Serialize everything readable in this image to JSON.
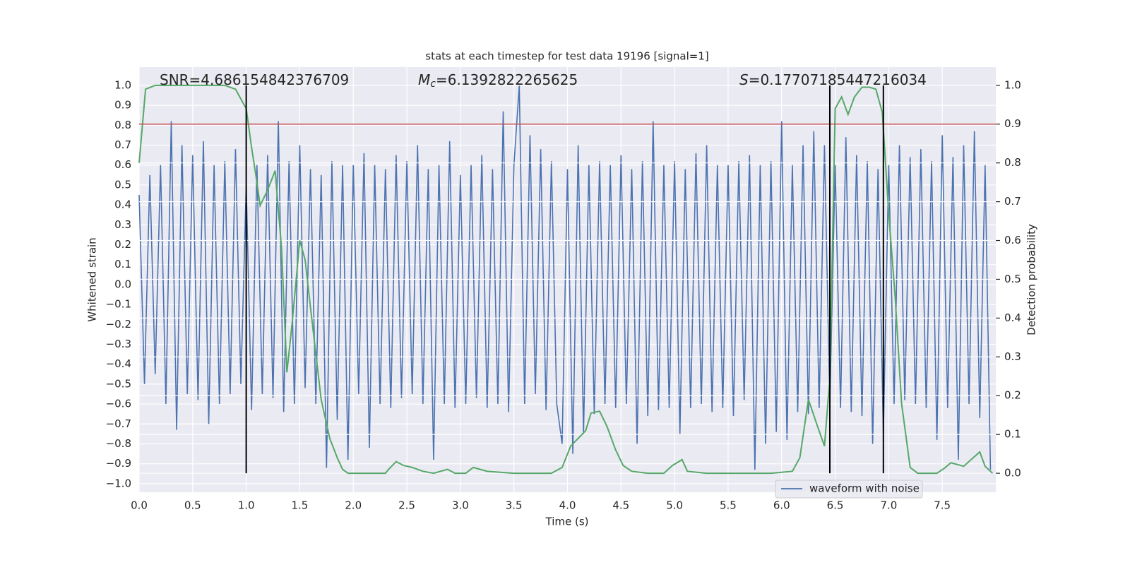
{
  "chart_data": {
    "type": "line",
    "title": "stats at each timestep for test data 19196 [signal=1]",
    "x_label": "Time (s)",
    "y_label": "Whitened strain",
    "y2_label": "Detection probability",
    "xlim": [
      0,
      8
    ],
    "ylim": [
      -1.043,
      1.092
    ],
    "y2lim": [
      -0.049,
      1.047
    ],
    "grid": true,
    "legend": "lower right",
    "xticks": [
      {
        "value": 0,
        "label": "0.0"
      },
      {
        "value": 0.5,
        "label": "0.5"
      },
      {
        "value": 1,
        "label": "1.0"
      },
      {
        "value": 1.5,
        "label": "1.5"
      },
      {
        "value": 2,
        "label": "2.0"
      },
      {
        "value": 2.5,
        "label": "2.5"
      },
      {
        "value": 3,
        "label": "3.0"
      },
      {
        "value": 3.5,
        "label": "3.5"
      },
      {
        "value": 4,
        "label": "4.0"
      },
      {
        "value": 4.5,
        "label": "4.5"
      },
      {
        "value": 5,
        "label": "5.0"
      },
      {
        "value": 5.5,
        "label": "5.5"
      },
      {
        "value": 6,
        "label": "6.0"
      },
      {
        "value": 6.5,
        "label": "6.5"
      },
      {
        "value": 7,
        "label": "7.0"
      },
      {
        "value": 7.5,
        "label": "7.5"
      }
    ],
    "yticks": [
      {
        "value": -1,
        "label": "−1.0"
      },
      {
        "value": -0.9,
        "label": "−0.9"
      },
      {
        "value": -0.8,
        "label": "−0.8"
      },
      {
        "value": -0.7,
        "label": "−0.7"
      },
      {
        "value": -0.6,
        "label": "−0.6"
      },
      {
        "value": -0.5,
        "label": "−0.5"
      },
      {
        "value": -0.4,
        "label": "−0.4"
      },
      {
        "value": -0.3,
        "label": "−0.3"
      },
      {
        "value": -0.2,
        "label": "−0.2"
      },
      {
        "value": -0.1,
        "label": "−0.1"
      },
      {
        "value": 0,
        "label": "0.0"
      },
      {
        "value": 0.1,
        "label": "0.1"
      },
      {
        "value": 0.2,
        "label": "0.2"
      },
      {
        "value": 0.3,
        "label": "0.3"
      },
      {
        "value": 0.4,
        "label": "0.4"
      },
      {
        "value": 0.5,
        "label": "0.5"
      },
      {
        "value": 0.6,
        "label": "0.6"
      },
      {
        "value": 0.7,
        "label": "0.7"
      },
      {
        "value": 0.8,
        "label": "0.8"
      },
      {
        "value": 0.9,
        "label": "0.9"
      },
      {
        "value": 1,
        "label": "1.0"
      }
    ],
    "y2ticks": [
      {
        "value": 0,
        "label": "0.0"
      },
      {
        "value": 0.1,
        "label": "0.1"
      },
      {
        "value": 0.2,
        "label": "0.2"
      },
      {
        "value": 0.3,
        "label": "0.3"
      },
      {
        "value": 0.4,
        "label": "0.4"
      },
      {
        "value": 0.5,
        "label": "0.5"
      },
      {
        "value": 0.6,
        "label": "0.6"
      },
      {
        "value": 0.7,
        "label": "0.7"
      },
      {
        "value": 0.8,
        "label": "0.8"
      },
      {
        "value": 0.9,
        "label": "0.9"
      },
      {
        "value": 1,
        "label": "1.0"
      }
    ],
    "series": [
      {
        "name": "waveform with noise",
        "color": "#4c72b0",
        "x": [
          0,
          0.05,
          0.1,
          0.15,
          0.2,
          0.25,
          0.3,
          0.35,
          0.4,
          0.45,
          0.5,
          0.55,
          0.6,
          0.65,
          0.7,
          0.75,
          0.8,
          0.85,
          0.9,
          0.95,
          1,
          1.05,
          1.1,
          1.15,
          1.2,
          1.25,
          1.3,
          1.35,
          1.4,
          1.45,
          1.5,
          1.55,
          1.6,
          1.65,
          1.7,
          1.75,
          1.8,
          1.85,
          1.9,
          1.95,
          2,
          2.05,
          2.1,
          2.15,
          2.2,
          2.25,
          2.3,
          2.35,
          2.4,
          2.45,
          2.5,
          2.55,
          2.6,
          2.65,
          2.7,
          2.75,
          2.8,
          2.85,
          2.9,
          2.95,
          3,
          3.05,
          3.1,
          3.15,
          3.2,
          3.25,
          3.3,
          3.35,
          3.4,
          3.45,
          3.5,
          3.55,
          3.6,
          3.65,
          3.7,
          3.75,
          3.8,
          3.85,
          3.9,
          3.95,
          4,
          4.05,
          4.1,
          4.15,
          4.2,
          4.25,
          4.3,
          4.35,
          4.4,
          4.45,
          4.5,
          4.55,
          4.6,
          4.65,
          4.7,
          4.75,
          4.8,
          4.85,
          4.9,
          4.95,
          5,
          5.05,
          5.1,
          5.15,
          5.2,
          5.25,
          5.3,
          5.35,
          5.4,
          5.45,
          5.5,
          5.55,
          5.6,
          5.65,
          5.7,
          5.75,
          5.8,
          5.85,
          5.9,
          5.95,
          6,
          6.05,
          6.1,
          6.15,
          6.2,
          6.25,
          6.3,
          6.35,
          6.4,
          6.45,
          6.5,
          6.55,
          6.6,
          6.65,
          6.7,
          6.75,
          6.8,
          6.85,
          6.9,
          6.95,
          7,
          7.05,
          7.1,
          7.15,
          7.2,
          7.25,
          7.3,
          7.35,
          7.4,
          7.45,
          7.5,
          7.55,
          7.6,
          7.65,
          7.7,
          7.75,
          7.8,
          7.85,
          7.9,
          7.95
        ],
        "values": [
          0.45,
          -0.5,
          0.55,
          -0.45,
          0.6,
          -0.6,
          0.82,
          -0.73,
          0.7,
          -0.55,
          0.65,
          -0.58,
          0.72,
          -0.7,
          0.6,
          -0.6,
          0.62,
          -0.55,
          0.68,
          -0.5,
          0.5,
          -0.63,
          0.6,
          -0.55,
          0.65,
          -0.57,
          0.82,
          -0.64,
          0.62,
          -0.6,
          0.7,
          -0.52,
          0.58,
          -0.6,
          0.55,
          -0.92,
          0.62,
          -0.68,
          0.6,
          -0.88,
          0.6,
          -0.55,
          0.66,
          -0.82,
          0.6,
          -0.6,
          0.58,
          -0.62,
          0.65,
          -0.57,
          0.62,
          -0.55,
          0.7,
          -0.6,
          0.58,
          -0.88,
          0.6,
          -0.6,
          0.72,
          -0.62,
          0.55,
          -0.6,
          0.6,
          -0.57,
          0.65,
          -0.62,
          0.58,
          -0.6,
          0.87,
          -0.64,
          0.6,
          1.0,
          -0.6,
          0.75,
          -0.55,
          0.68,
          -0.63,
          0.62,
          -0.6,
          -0.8,
          0.58,
          -0.85,
          0.7,
          -0.75,
          0.6,
          -0.65,
          0.62,
          -0.6,
          0.6,
          -0.62,
          0.65,
          -0.6,
          0.58,
          -0.8,
          0.62,
          -0.66,
          0.82,
          -0.63,
          0.6,
          -0.62,
          0.62,
          -0.75,
          0.58,
          -0.62,
          0.66,
          -0.6,
          0.7,
          -0.64,
          0.6,
          -0.62,
          0.6,
          -0.66,
          0.62,
          -0.58,
          0.65,
          -0.93,
          0.6,
          -0.8,
          0.62,
          -0.74,
          0.82,
          -0.78,
          0.6,
          -0.64,
          0.7,
          -0.65,
          0.77,
          -0.62,
          0.7,
          -0.6,
          0.6,
          -0.62,
          0.74,
          -0.64,
          0.65,
          -0.66,
          0.62,
          -0.8,
          0.58,
          -0.75,
          0.6,
          -0.6,
          0.7,
          -0.58,
          0.64,
          -0.6,
          0.68,
          -0.62,
          0.62,
          -0.78,
          0.75,
          -0.62,
          0.64,
          -0.88,
          0.7,
          -0.6,
          0.77,
          -0.67,
          0.6,
          -0.93
        ]
      }
    ],
    "probability": {
      "axis": "y2",
      "color": "#55a868",
      "x": [
        0,
        0.06,
        0.15,
        0.8,
        0.9,
        1,
        1.05,
        1.1,
        1.13,
        1.2,
        1.27,
        1.33,
        1.38,
        1.43,
        1.5,
        1.55,
        1.62,
        1.7,
        1.78,
        1.85,
        1.9,
        1.95,
        2.1,
        2.3,
        2.33,
        2.4,
        2.47,
        2.55,
        2.65,
        2.75,
        2.88,
        2.95,
        3.05,
        3.12,
        3.25,
        3.5,
        3.85,
        3.95,
        4.03,
        4.1,
        4.17,
        4.22,
        4.3,
        4.37,
        4.45,
        4.52,
        4.6,
        4.75,
        4.9,
        4.98,
        5.07,
        5.12,
        5.3,
        5.9,
        6.1,
        6.17,
        6.25,
        6.33,
        6.4,
        6.45,
        6.5,
        6.56,
        6.62,
        6.68,
        6.75,
        6.82,
        6.88,
        6.94,
        7,
        7.06,
        7.12,
        7.2,
        7.27,
        7.45,
        7.52,
        7.58,
        7.7,
        7.85,
        7.9,
        7.97
      ],
      "values": [
        0.8,
        0.99,
        1,
        1,
        0.99,
        0.94,
        0.84,
        0.75,
        0.69,
        0.73,
        0.78,
        0.58,
        0.26,
        0.39,
        0.6,
        0.55,
        0.38,
        0.19,
        0.09,
        0.04,
        0.01,
        0,
        0,
        0,
        0.01,
        0.03,
        0.02,
        0.015,
        0.005,
        0,
        0.01,
        0,
        0,
        0.015,
        0.005,
        0,
        0,
        0.015,
        0.07,
        0.09,
        0.11,
        0.155,
        0.16,
        0.12,
        0.06,
        0.02,
        0.005,
        0,
        0,
        0.02,
        0.035,
        0.005,
        0,
        0,
        0.005,
        0.04,
        0.19,
        0.125,
        0.07,
        0.245,
        0.94,
        0.97,
        0.925,
        0.97,
        0.995,
        0.995,
        0.99,
        0.93,
        0.67,
        0.455,
        0.18,
        0.015,
        0,
        0,
        0.013,
        0.027,
        0.018,
        0.055,
        0.018,
        0
      ]
    },
    "threshold": {
      "value": 0.9,
      "axis": "y2",
      "color": "#c44e52"
    },
    "vlines": {
      "x": [
        1.0,
        6.45,
        6.95
      ],
      "ymin": 0,
      "ymax": 1,
      "axis": "y2",
      "color": "#000000"
    },
    "annotations": [
      {
        "text": "SNR=4.686154842376709"
      },
      {
        "symbol": "M",
        "subscript": "c",
        "text": "=6.1392822265625"
      },
      {
        "symbol": "S",
        "text": "=0.17707185447216034"
      }
    ]
  }
}
